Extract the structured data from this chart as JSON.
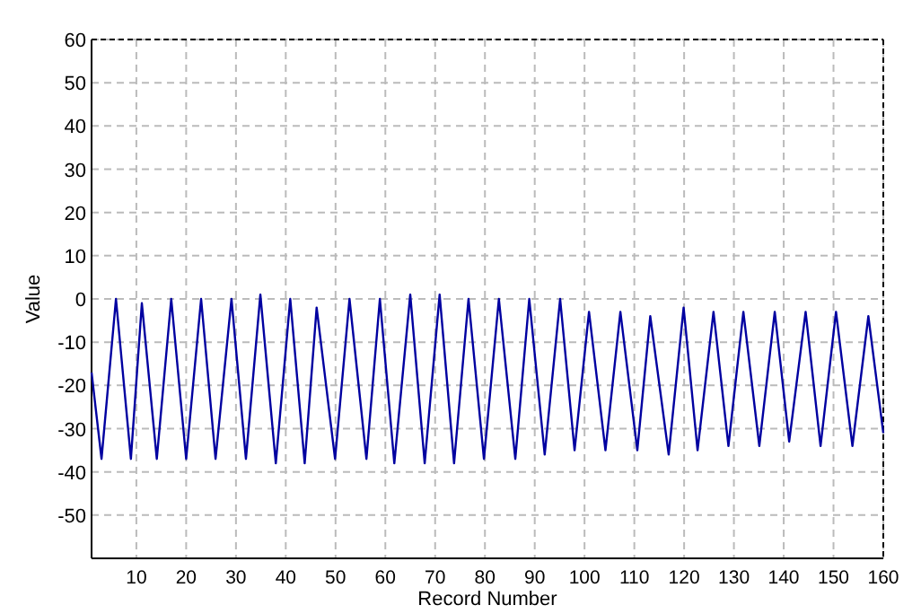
{
  "chart_data": {
    "type": "line",
    "xlabel": "Record Number",
    "ylabel": "Value",
    "xlim": [
      1,
      160
    ],
    "xticks": [
      10,
      20,
      30,
      40,
      50,
      60,
      70,
      80,
      90,
      100,
      110,
      120,
      130,
      140,
      150,
      160
    ],
    "ylim": [
      -60,
      60
    ],
    "yticks": [
      -50,
      -40,
      -30,
      -20,
      -10,
      0,
      10,
      20,
      30,
      40,
      50,
      60
    ],
    "grid": true,
    "marker": "none",
    "line_style": "solid",
    "series": [
      {
        "color": "#0000a0",
        "x": [
          1,
          3,
          5.9,
          8.9,
          11.1,
          14.1,
          17,
          20,
          23,
          25.9,
          29.1,
          32,
          34.9,
          38,
          40.9,
          43.8,
          46.2,
          49.9,
          52.8,
          56.2,
          58.9,
          61.8,
          65,
          67.9,
          70.9,
          73.8,
          76.7,
          79.8,
          82.8,
          86.1,
          88.9,
          92,
          95.1,
          98,
          100.9,
          104.2,
          107.2,
          110.6,
          113.2,
          116.9,
          119.9,
          122.7,
          125.9,
          128.9,
          131.9,
          135.1,
          138.2,
          141.1,
          144.4,
          147.4,
          150.5,
          153.8,
          157,
          160
        ],
        "values": [
          -17,
          -37,
          0,
          -37,
          -1,
          -37,
          0,
          -37,
          0,
          -37,
          0,
          -37,
          1,
          -38,
          0,
          -38,
          -2,
          -37,
          0,
          -37,
          0,
          -38,
          1,
          -38,
          1,
          -38,
          0,
          -37,
          0,
          -37,
          0,
          -36,
          0,
          -35,
          -3,
          -35,
          -3,
          -35,
          -4,
          -36,
          -2,
          -35,
          -3,
          -34,
          -3,
          -34,
          -3,
          -33,
          -3,
          -34,
          -3,
          -34,
          -4,
          -31
        ]
      }
    ]
  }
}
